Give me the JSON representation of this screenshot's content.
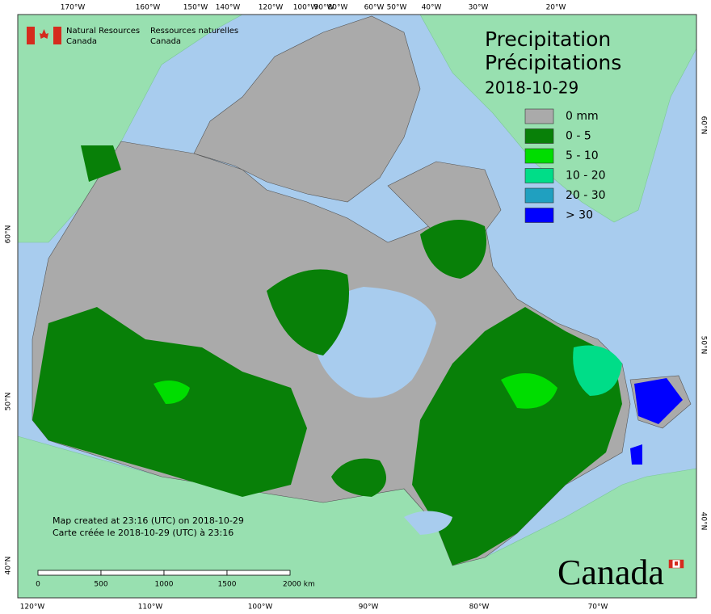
{
  "header": {
    "en": [
      "Natural Resources",
      "Canada"
    ],
    "fr": [
      "Ressources naturelles",
      "Canada"
    ]
  },
  "title": {
    "en": "Precipitation",
    "fr": "Précipitations",
    "date": "2018-10-29"
  },
  "legend": {
    "items": [
      {
        "label": "0 mm",
        "color": "#aaaaaa"
      },
      {
        "label": "0 - 5",
        "color": "#088008"
      },
      {
        "label": "5 - 10",
        "color": "#00dd00"
      },
      {
        "label": "10 - 20",
        "color": "#00dd88"
      },
      {
        "label": "20 - 30",
        "color": "#20a0c0"
      },
      {
        "label": "> 30",
        "color": "#0000ff"
      }
    ]
  },
  "graticule": {
    "top": [
      "170°W",
      "160°W",
      "150°W",
      "140°W",
      "120°W",
      "100°W",
      "90°W",
      "80°W",
      "60°W",
      "50°W",
      "40°W",
      "30°W",
      "20°W"
    ],
    "bottom": [
      "120°W",
      "110°W",
      "100°W",
      "90°W",
      "80°W",
      "70°W"
    ],
    "left": [
      "60°N",
      "50°N",
      "40°N"
    ],
    "right": [
      "60°N",
      "50°N",
      "40°N"
    ]
  },
  "notes": [
    "Map created at 23:16 (UTC) on 2018-10-29",
    "Carte créée le 2018-10-29 (UTC) à 23:16"
  ],
  "scale_bar": {
    "labels": [
      "0",
      "500",
      "1000",
      "1500",
      "2000 km"
    ]
  },
  "wordmark": "Canada"
}
